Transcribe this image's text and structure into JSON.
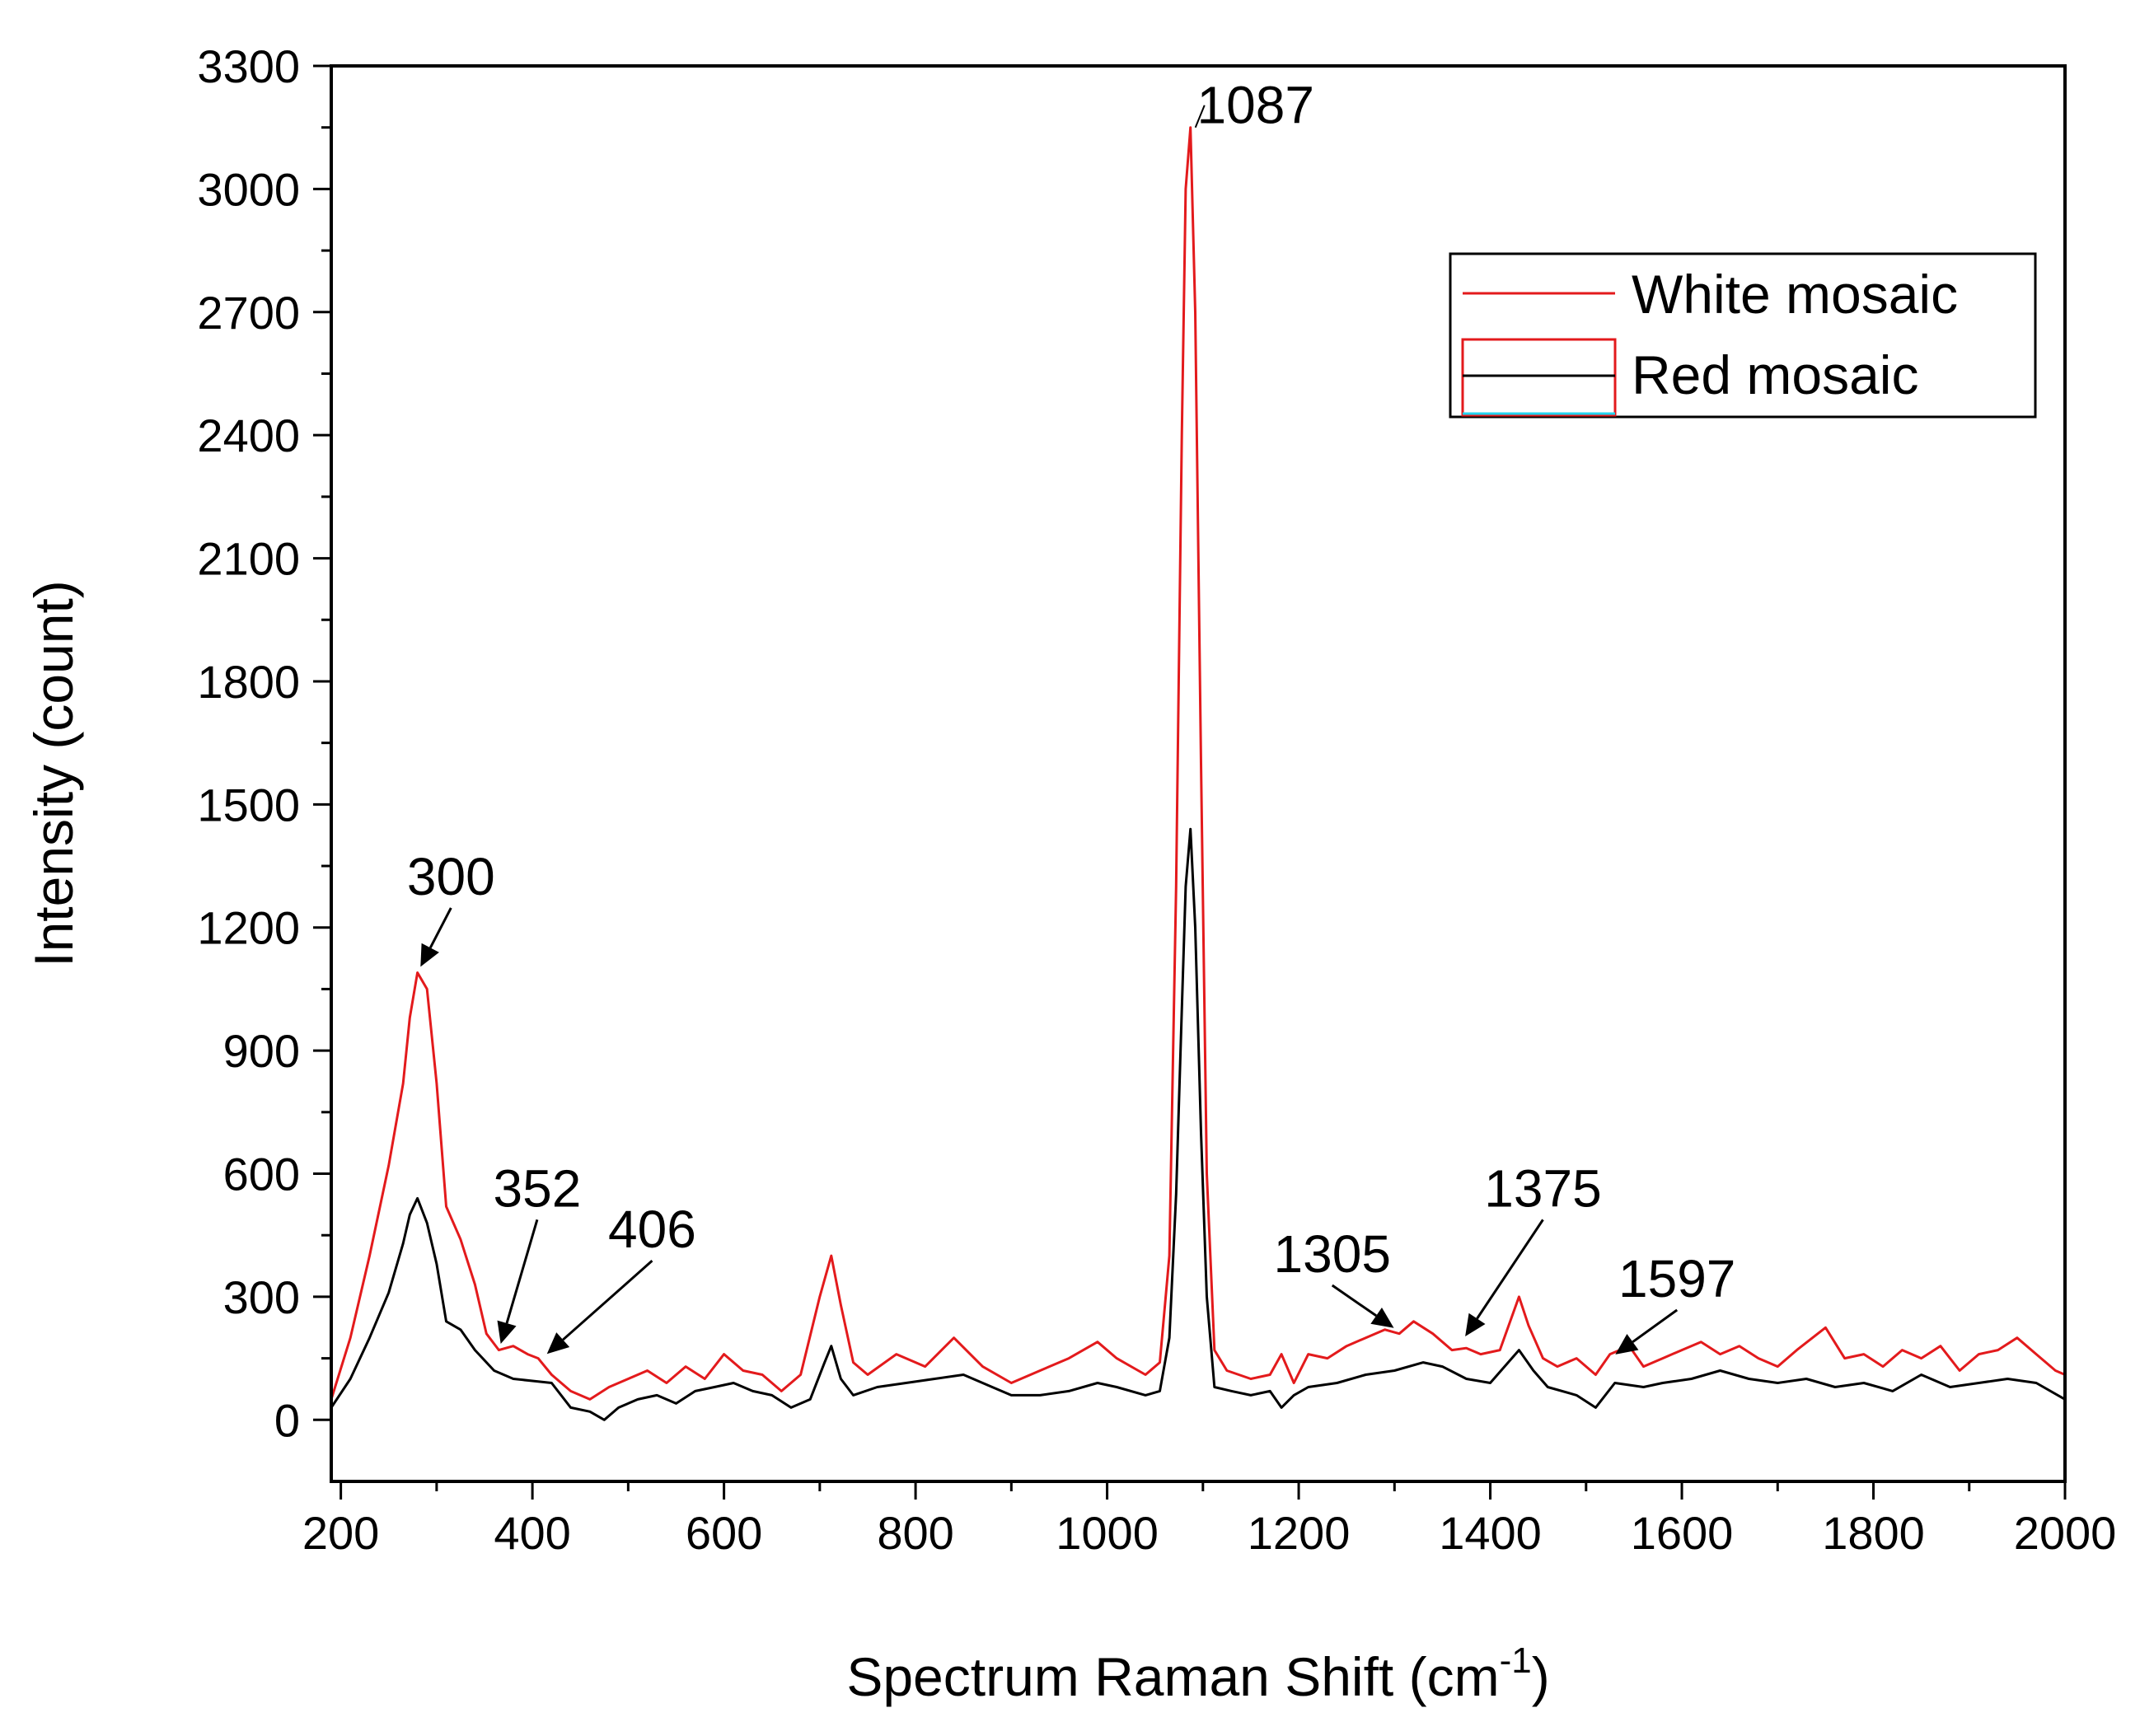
{
  "chart_data": {
    "type": "line",
    "title": "",
    "xlabel": "Spectrum Raman Shift (cm",
    "xlabel_sup": "-1",
    "xlabel_close": ")",
    "ylabel": "Intensity (count)",
    "xlim": [
      190,
      2000
    ],
    "ylim": [
      -150,
      3300
    ],
    "xticks": [
      200,
      400,
      600,
      800,
      1000,
      1200,
      1400,
      1600,
      1800,
      2000
    ],
    "yticks": [
      0,
      300,
      600,
      900,
      1200,
      1500,
      1800,
      2100,
      2400,
      2700,
      3000,
      3300
    ],
    "legend": {
      "placement": "top-right"
    },
    "series": [
      {
        "name": "White mosaic",
        "color": "#e31a1c",
        "points": [
          [
            190,
            50
          ],
          [
            210,
            200
          ],
          [
            230,
            400
          ],
          [
            250,
            620
          ],
          [
            265,
            820
          ],
          [
            272,
            980
          ],
          [
            280,
            1090
          ],
          [
            290,
            1050
          ],
          [
            300,
            820
          ],
          [
            310,
            520
          ],
          [
            325,
            440
          ],
          [
            340,
            330
          ],
          [
            352,
            210
          ],
          [
            365,
            170
          ],
          [
            380,
            180
          ],
          [
            395,
            160
          ],
          [
            406,
            150
          ],
          [
            420,
            110
          ],
          [
            440,
            70
          ],
          [
            460,
            50
          ],
          [
            480,
            80
          ],
          [
            500,
            100
          ],
          [
            520,
            120
          ],
          [
            540,
            90
          ],
          [
            560,
            130
          ],
          [
            580,
            100
          ],
          [
            600,
            160
          ],
          [
            620,
            120
          ],
          [
            640,
            110
          ],
          [
            660,
            70
          ],
          [
            680,
            110
          ],
          [
            700,
            300
          ],
          [
            712,
            400
          ],
          [
            722,
            280
          ],
          [
            735,
            140
          ],
          [
            750,
            110
          ],
          [
            780,
            160
          ],
          [
            810,
            130
          ],
          [
            840,
            200
          ],
          [
            870,
            130
          ],
          [
            900,
            90
          ],
          [
            930,
            120
          ],
          [
            960,
            150
          ],
          [
            990,
            190
          ],
          [
            1010,
            150
          ],
          [
            1040,
            110
          ],
          [
            1055,
            140
          ],
          [
            1065,
            400
          ],
          [
            1072,
            1300
          ],
          [
            1078,
            2400
          ],
          [
            1082,
            3000
          ],
          [
            1087,
            3150
          ],
          [
            1092,
            2700
          ],
          [
            1098,
            1600
          ],
          [
            1104,
            600
          ],
          [
            1112,
            170
          ],
          [
            1125,
            120
          ],
          [
            1150,
            100
          ],
          [
            1170,
            110
          ],
          [
            1182,
            160
          ],
          [
            1195,
            90
          ],
          [
            1210,
            160
          ],
          [
            1230,
            150
          ],
          [
            1250,
            180
          ],
          [
            1270,
            200
          ],
          [
            1290,
            220
          ],
          [
            1305,
            210
          ],
          [
            1320,
            240
          ],
          [
            1340,
            210
          ],
          [
            1360,
            170
          ],
          [
            1375,
            175
          ],
          [
            1390,
            160
          ],
          [
            1410,
            170
          ],
          [
            1430,
            300
          ],
          [
            1440,
            230
          ],
          [
            1455,
            150
          ],
          [
            1470,
            130
          ],
          [
            1490,
            150
          ],
          [
            1510,
            110
          ],
          [
            1525,
            160
          ],
          [
            1545,
            180
          ],
          [
            1560,
            130
          ],
          [
            1580,
            150
          ],
          [
            1600,
            170
          ],
          [
            1620,
            190
          ],
          [
            1640,
            160
          ],
          [
            1660,
            180
          ],
          [
            1680,
            150
          ],
          [
            1700,
            130
          ],
          [
            1720,
            170
          ],
          [
            1750,
            225
          ],
          [
            1770,
            150
          ],
          [
            1790,
            160
          ],
          [
            1810,
            130
          ],
          [
            1830,
            170
          ],
          [
            1850,
            150
          ],
          [
            1870,
            180
          ],
          [
            1890,
            120
          ],
          [
            1910,
            160
          ],
          [
            1930,
            170
          ],
          [
            1950,
            200
          ],
          [
            1970,
            160
          ],
          [
            1990,
            120
          ],
          [
            2000,
            110
          ]
        ]
      },
      {
        "name": "Red mosaic",
        "color": "#000000",
        "points": [
          [
            190,
            30
          ],
          [
            210,
            100
          ],
          [
            230,
            200
          ],
          [
            250,
            310
          ],
          [
            265,
            430
          ],
          [
            272,
            500
          ],
          [
            280,
            540
          ],
          [
            290,
            480
          ],
          [
            300,
            380
          ],
          [
            310,
            240
          ],
          [
            325,
            220
          ],
          [
            340,
            170
          ],
          [
            360,
            120
          ],
          [
            380,
            100
          ],
          [
            400,
            95
          ],
          [
            420,
            90
          ],
          [
            440,
            30
          ],
          [
            460,
            20
          ],
          [
            475,
            0
          ],
          [
            490,
            30
          ],
          [
            510,
            50
          ],
          [
            530,
            60
          ],
          [
            550,
            40
          ],
          [
            570,
            70
          ],
          [
            590,
            80
          ],
          [
            610,
            90
          ],
          [
            630,
            70
          ],
          [
            650,
            60
          ],
          [
            670,
            30
          ],
          [
            690,
            50
          ],
          [
            705,
            140
          ],
          [
            712,
            180
          ],
          [
            722,
            100
          ],
          [
            735,
            60
          ],
          [
            760,
            80
          ],
          [
            790,
            90
          ],
          [
            820,
            100
          ],
          [
            850,
            110
          ],
          [
            880,
            80
          ],
          [
            900,
            60
          ],
          [
            930,
            60
          ],
          [
            960,
            70
          ],
          [
            990,
            90
          ],
          [
            1010,
            80
          ],
          [
            1040,
            60
          ],
          [
            1055,
            70
          ],
          [
            1065,
            200
          ],
          [
            1072,
            550
          ],
          [
            1078,
            1000
          ],
          [
            1082,
            1300
          ],
          [
            1087,
            1440
          ],
          [
            1092,
            1200
          ],
          [
            1098,
            700
          ],
          [
            1104,
            300
          ],
          [
            1112,
            80
          ],
          [
            1130,
            70
          ],
          [
            1150,
            60
          ],
          [
            1170,
            70
          ],
          [
            1182,
            30
          ],
          [
            1195,
            60
          ],
          [
            1210,
            80
          ],
          [
            1240,
            90
          ],
          [
            1270,
            110
          ],
          [
            1300,
            120
          ],
          [
            1330,
            140
          ],
          [
            1350,
            130
          ],
          [
            1375,
            100
          ],
          [
            1400,
            90
          ],
          [
            1430,
            170
          ],
          [
            1445,
            120
          ],
          [
            1460,
            80
          ],
          [
            1490,
            60
          ],
          [
            1510,
            30
          ],
          [
            1530,
            90
          ],
          [
            1560,
            80
          ],
          [
            1580,
            90
          ],
          [
            1610,
            100
          ],
          [
            1640,
            120
          ],
          [
            1670,
            100
          ],
          [
            1700,
            90
          ],
          [
            1730,
            100
          ],
          [
            1760,
            80
          ],
          [
            1790,
            90
          ],
          [
            1820,
            70
          ],
          [
            1850,
            110
          ],
          [
            1880,
            80
          ],
          [
            1910,
            90
          ],
          [
            1940,
            100
          ],
          [
            1970,
            90
          ],
          [
            2000,
            50
          ]
        ]
      }
    ],
    "annotations": [
      {
        "label": "300",
        "x": 280,
        "y": 1090,
        "text_x": 315,
        "text_y": 1280
      },
      {
        "label": "352",
        "x": 365,
        "y": 170,
        "text_x": 405,
        "text_y": 520
      },
      {
        "label": "406",
        "x": 410,
        "y": 150,
        "text_x": 525,
        "text_y": 420
      },
      {
        "label": "1087",
        "x": 1087,
        "y": 3150,
        "text_x": 1155,
        "text_y": 3160
      },
      {
        "label": "1305",
        "x": 1305,
        "y": 215,
        "text_x": 1235,
        "text_y": 360
      },
      {
        "label": "1375",
        "x": 1370,
        "y": 190,
        "text_x": 1455,
        "text_y": 520
      },
      {
        "label": "1597",
        "x": 1525,
        "y": 150,
        "text_x": 1595,
        "text_y": 300
      }
    ]
  }
}
